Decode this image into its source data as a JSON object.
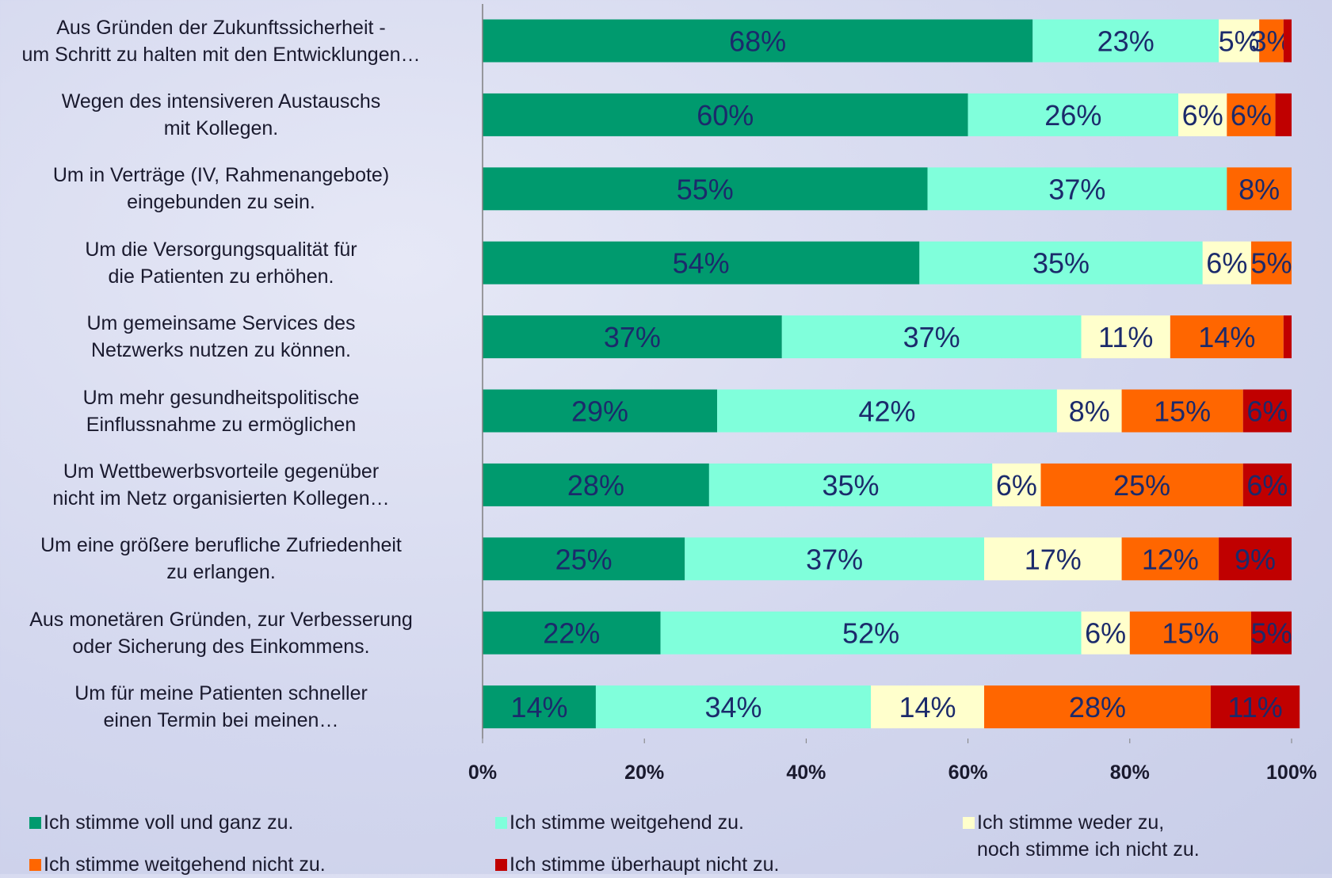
{
  "chart_data": {
    "type": "bar",
    "orientation": "horizontal",
    "stacked": true,
    "categories": [
      "Aus Gründen der Zukunftssicherheit -\num Schritt zu halten mit den Entwicklungen…",
      "Wegen des intensiveren Austauschs\nmit Kollegen.",
      "Um in Verträge (IV, Rahmenangebote)\neingebunden zu sein.",
      "Um die Versorgungsqualität für\ndie Patienten zu erhöhen.",
      "Um gemeinsame Services des\nNetzwerks nutzen zu können.",
      "Um mehr gesundheitspolitische\nEinflussnahme zu ermöglichen",
      "Um Wettbewerbsvorteile gegenüber\nnicht im Netz organisierten Kollegen…",
      "Um eine größere berufliche Zufriedenheit\nzu erlangen.",
      "Aus monetären Gründen, zur Verbesserung\noder Sicherung des Einkommens.",
      "Um für meine Patienten schneller\neinen Termin bei meinen…"
    ],
    "series": [
      {
        "name": "Ich stimme voll und ganz zu.",
        "color": "#009a6e",
        "values": [
          68,
          60,
          55,
          54,
          37,
          29,
          28,
          25,
          22,
          14
        ],
        "value_labels": [
          "68%",
          "60%",
          "55%",
          "54%",
          "37%",
          "29%",
          "28%",
          "25%",
          "22%",
          "14%"
        ]
      },
      {
        "name": "Ich stimme weitgehend zu.",
        "color": "#80ffdb",
        "values": [
          23,
          26,
          37,
          35,
          37,
          42,
          35,
          37,
          52,
          34
        ],
        "value_labels": [
          "23%",
          "26%",
          "37%",
          "35%",
          "37%",
          "42%",
          "35%",
          "37%",
          "52%",
          "34%"
        ]
      },
      {
        "name": "Ich stimme weder zu,\nnoch stimme ich nicht zu.",
        "color": "#ffffcc",
        "values": [
          5,
          6,
          0,
          6,
          11,
          8,
          6,
          17,
          6,
          14
        ],
        "value_labels": [
          "5%",
          "6%",
          null,
          "6%",
          "11%",
          "8%",
          "6%",
          "17%",
          "6%",
          "14%"
        ]
      },
      {
        "name": "Ich stimme weitgehend nicht zu.",
        "color": "#ff6600",
        "values": [
          3,
          6,
          8,
          5,
          14,
          15,
          25,
          12,
          15,
          28
        ],
        "value_labels": [
          "3%",
          "6%",
          "8%",
          "5%",
          "14%",
          "15%",
          "25%",
          "12%",
          "15%",
          "28%"
        ]
      },
      {
        "name": "Ich stimme überhaupt nicht zu.",
        "color": "#c00000",
        "values": [
          1,
          2,
          0,
          0,
          1,
          6,
          6,
          9,
          5,
          11
        ],
        "value_labels": [
          null,
          null,
          null,
          null,
          null,
          "6%",
          "6%",
          "9%",
          "5%",
          "11%"
        ]
      }
    ],
    "xlim": [
      0,
      100
    ],
    "xticks": [
      {
        "value": 0,
        "label": "0%"
      },
      {
        "value": 20,
        "label": "20%"
      },
      {
        "value": 40,
        "label": "40%"
      },
      {
        "value": 60,
        "label": "60%"
      },
      {
        "value": 80,
        "label": "80%"
      },
      {
        "value": 100,
        "label": "100%"
      }
    ],
    "grid": false
  }
}
